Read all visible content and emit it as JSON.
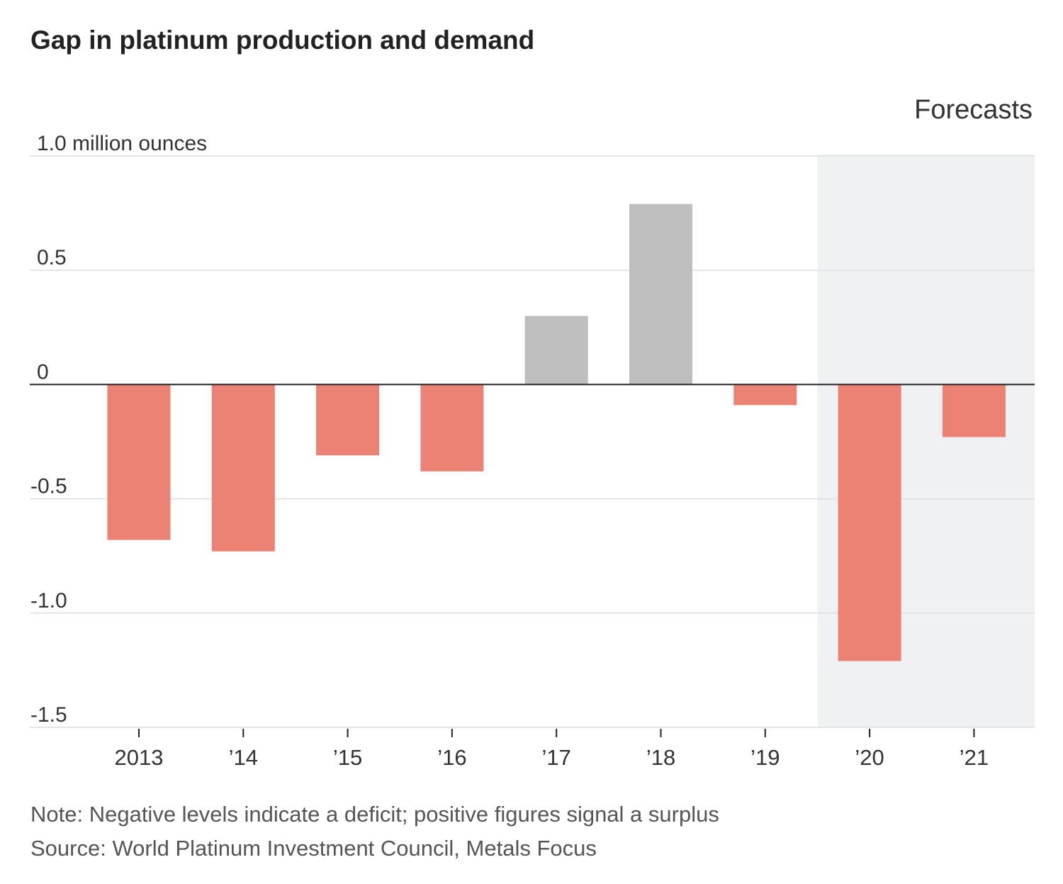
{
  "chart_data": {
    "type": "bar",
    "title": "Gap in platinum production and demand",
    "ylabel": "1.0 million ounces",
    "categories": [
      "2013",
      "’14",
      "’15",
      "’16",
      "’17",
      "’18",
      "’19",
      "’20",
      "’21"
    ],
    "values": [
      -0.68,
      -0.73,
      -0.31,
      -0.38,
      0.3,
      0.79,
      -0.09,
      -1.21,
      -0.23
    ],
    "y_ticks": [
      1.0,
      0.5,
      0,
      -0.5,
      -1.0,
      -1.5
    ],
    "y_tick_labels": [
      "1.0 million ounces",
      "0.5",
      "0",
      "-0.5",
      "-1.0",
      "-1.5"
    ],
    "ylim": [
      -1.5,
      1.0
    ],
    "forecast": {
      "label": "Forecasts",
      "categories": [
        "’20",
        "’21"
      ]
    },
    "grid": true,
    "colors": {
      "deficit": "#ec8273",
      "surplus": "#bebebe",
      "forecast_band": "#f0f1f2",
      "gridline": "#e4e4e4",
      "zero_line": "#222222"
    }
  },
  "note": "Note: Negative levels indicate a deficit; positive figures signal a surplus",
  "source": "Source: World Platinum Investment Council, Metals Focus"
}
